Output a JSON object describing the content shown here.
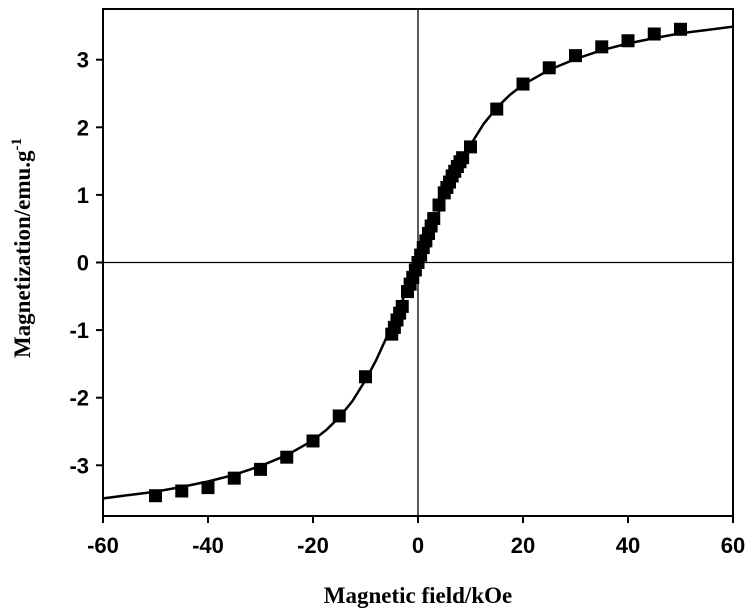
{
  "chart_data": {
    "type": "scatter",
    "title": "",
    "xlabel": "Magnetic field/kOe",
    "ylabel": "Magnetization/emu.g",
    "ylabel_superscript": "-1",
    "xlim": [
      -60,
      60
    ],
    "ylim": [
      -3.75,
      3.75
    ],
    "x_ticks": [
      -60,
      -40,
      -20,
      0,
      20,
      40,
      60
    ],
    "y_ticks": [
      3,
      2,
      1,
      0,
      -1,
      -2,
      -3
    ],
    "grid": false,
    "zero_lines": true,
    "series": [
      {
        "marker": "square",
        "color": "#000000",
        "x": [
          -50,
          -45,
          -40,
          -35,
          -30,
          -25,
          -20,
          -15,
          -10,
          -5,
          -4.5,
          -4,
          -3.5,
          -3,
          -2,
          -1.5,
          -1,
          -0.5,
          0,
          0.5,
          1,
          1.5,
          2,
          2.5,
          3,
          4,
          5,
          5.5,
          6,
          6.5,
          7,
          7.5,
          8,
          8.5,
          10,
          15,
          20,
          25,
          30,
          35,
          40,
          45,
          50
        ],
        "y": [
          -3.45,
          -3.38,
          -3.33,
          -3.19,
          -3.06,
          -2.88,
          -2.64,
          -2.27,
          -1.69,
          -1.06,
          -0.96,
          -0.85,
          -0.75,
          -0.65,
          -0.43,
          -0.32,
          -0.22,
          -0.11,
          0.0,
          0.11,
          0.22,
          0.32,
          0.43,
          0.54,
          0.65,
          0.85,
          1.03,
          1.11,
          1.19,
          1.28,
          1.35,
          1.42,
          1.49,
          1.55,
          1.71,
          2.27,
          2.64,
          2.88,
          3.06,
          3.19,
          3.28,
          3.38,
          3.45
        ]
      },
      {
        "type": "line",
        "color": "#000000",
        "x": [
          -62,
          -55,
          -50,
          -45,
          -40,
          -35,
          -30,
          -25,
          -20,
          -17.5,
          -15,
          -12.5,
          -10,
          -8,
          -6,
          -4,
          -2,
          0,
          2,
          4,
          6,
          8,
          10,
          12.5,
          15,
          17.5,
          20,
          25,
          30,
          35,
          40,
          45,
          50,
          55,
          62
        ],
        "y": [
          -3.51,
          -3.44,
          -3.39,
          -3.32,
          -3.24,
          -3.14,
          -3.01,
          -2.85,
          -2.63,
          -2.48,
          -2.29,
          -2.05,
          -1.74,
          -1.45,
          -1.11,
          -0.76,
          -0.38,
          0.0,
          0.38,
          0.76,
          1.11,
          1.45,
          1.74,
          2.05,
          2.29,
          2.48,
          2.63,
          2.85,
          3.01,
          3.14,
          3.24,
          3.32,
          3.39,
          3.44,
          3.51
        ]
      }
    ]
  }
}
